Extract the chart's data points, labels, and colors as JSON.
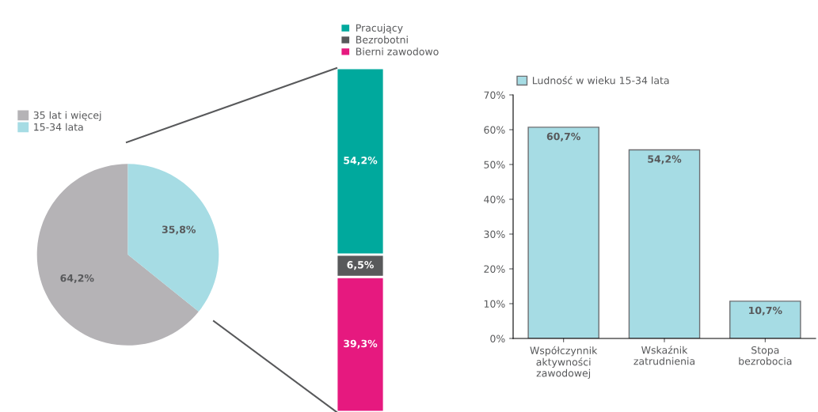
{
  "chart_data": [
    {
      "type": "pie",
      "categories": [
        "35 lat i więcej",
        "15-34 lata"
      ],
      "values": [
        64.2,
        35.8
      ],
      "colors": [
        "#b5b3b6",
        "#a6dce4"
      ],
      "value_labels": [
        "64,2%",
        "35,8%"
      ],
      "legend": "top left"
    },
    {
      "type": "bar",
      "stacked": true,
      "tick_labels": false,
      "categories": [
        null
      ],
      "legend": "top",
      "series": [
        {
          "name": "Bierni zawodowo",
          "color": "#e6197f",
          "values": [
            39.3
          ],
          "value_labels": [
            "39,3%"
          ]
        },
        {
          "name": "Bezrobotni",
          "color": "#58595b",
          "values": [
            6.5
          ],
          "value_labels": [
            "6,5%"
          ]
        },
        {
          "name": "Pracujący",
          "color": "#00a99d",
          "values": [
            54.2
          ],
          "value_labels": [
            "54,2%"
          ]
        }
      ]
    },
    {
      "type": "bar",
      "categories": [
        "Współczynnik\naktywności\nzawodowej",
        "Wskaźnik\nzatrudnienia",
        "Stopa\nbezrobocia"
      ],
      "legend": "top left",
      "grid": false,
      "series": [
        {
          "name": "Ludność w wieku 15-34 lata",
          "color": "#a6dce4",
          "values": [
            60.7,
            54.2,
            10.7
          ],
          "value_labels": [
            "60,7%",
            "54,2%",
            "10,7%"
          ]
        }
      ],
      "ylim": [
        0,
        70
      ],
      "yticks": [
        {
          "value": 0,
          "label": "0%"
        },
        {
          "value": 10,
          "label": "10%"
        },
        {
          "value": 20,
          "label": "20%"
        },
        {
          "value": 30,
          "label": "30%"
        },
        {
          "value": 40,
          "label": "40%"
        },
        {
          "value": 50,
          "label": "50%"
        },
        {
          "value": 60,
          "label": "60%"
        },
        {
          "value": 70,
          "label": "70%"
        }
      ]
    }
  ]
}
